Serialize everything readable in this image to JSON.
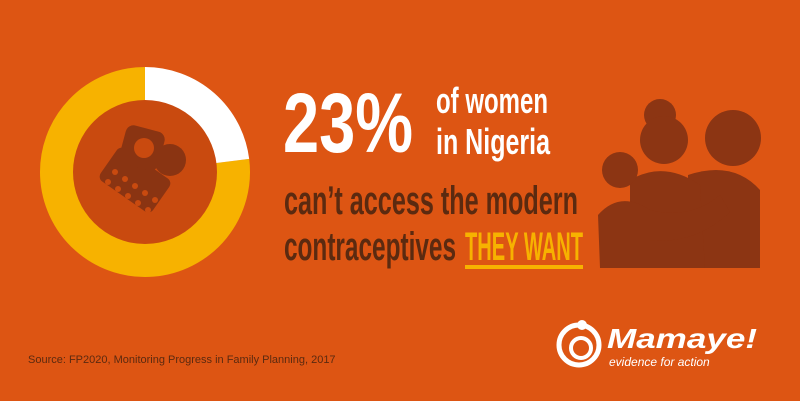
{
  "stat": {
    "value": 23,
    "label": "23%"
  },
  "headline": [
    "of women",
    "in Nigeria"
  ],
  "body": [
    "can’t access the modern",
    "contraceptives"
  ],
  "emphasis": "THEY WANT",
  "source": "Source: FP2020, Monitoring Progress in Family Planning, 2017",
  "logo": {
    "name": "Mamaye!",
    "tagline": "evidence for action"
  }
}
